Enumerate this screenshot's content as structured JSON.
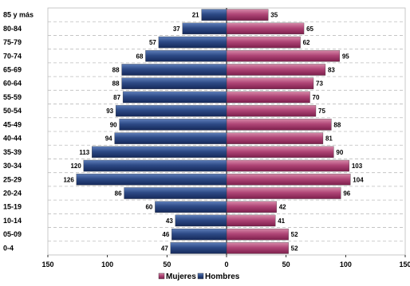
{
  "chart_data": {
    "type": "bar",
    "orientation": "horizontal-diverging",
    "categories": [
      "85 y más",
      "80-84",
      "75-79",
      "70-74",
      "65-69",
      "60-64",
      "55-59",
      "50-54",
      "45-49",
      "40-44",
      "35-39",
      "30-34",
      "25-29",
      "20-24",
      "15-19",
      "10-14",
      "05-09",
      "0-4"
    ],
    "series": [
      {
        "name": "Mujeres",
        "side": "right",
        "color": "#b04677",
        "values": [
          35,
          65,
          62,
          95,
          83,
          73,
          70,
          75,
          88,
          81,
          90,
          103,
          104,
          96,
          42,
          41,
          52,
          52
        ]
      },
      {
        "name": "Hombres",
        "side": "left",
        "color": "#2c4a86",
        "values": [
          21,
          37,
          57,
          68,
          88,
          88,
          87,
          93,
          90,
          94,
          113,
          120,
          126,
          86,
          60,
          43,
          46,
          47
        ]
      }
    ],
    "xticks": [
      150,
      100,
      50,
      0,
      50,
      100,
      150
    ],
    "xlim": [
      -150,
      150
    ],
    "grid": true,
    "legend_position": "bottom"
  }
}
